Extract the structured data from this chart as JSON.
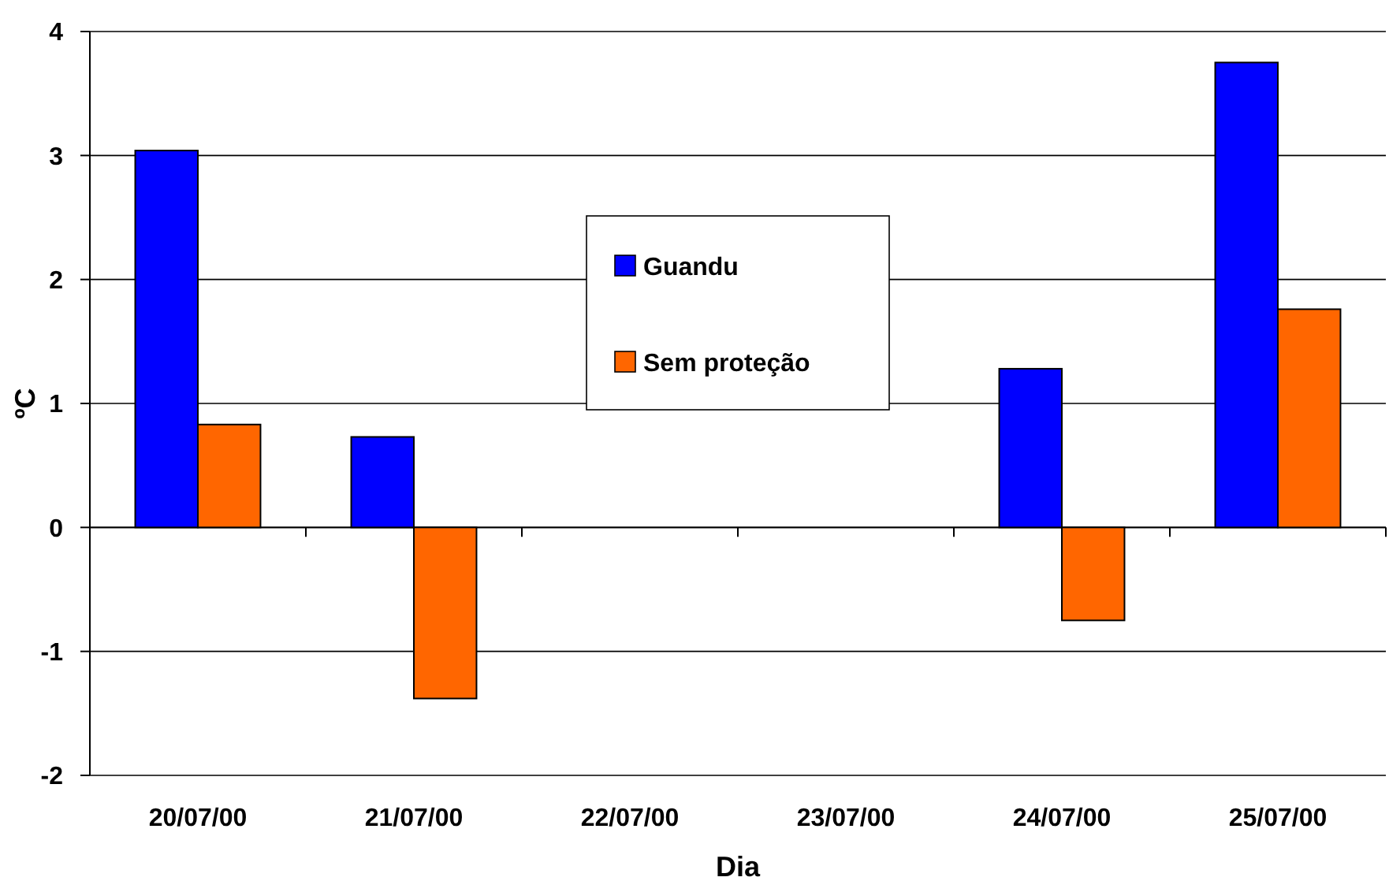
{
  "chart_data": {
    "type": "bar",
    "xlabel": "Dia",
    "ylabel": "ºC",
    "categories": [
      "20/07/00",
      "21/07/00",
      "22/07/00",
      "23/07/00",
      "24/07/00",
      "25/07/00"
    ],
    "series": [
      {
        "name": "Guandu",
        "color": "#0000ff",
        "values": [
          3.04,
          0.73,
          null,
          null,
          1.28,
          3.75
        ]
      },
      {
        "name": "Sem proteção",
        "color": "#ff6600",
        "values": [
          0.83,
          -1.38,
          null,
          null,
          -0.75,
          1.76
        ]
      }
    ],
    "ylim": [
      -2,
      4
    ],
    "yticks": [
      -2,
      -1,
      0,
      1,
      2,
      3,
      4
    ],
    "grid": "y",
    "legend": "top"
  }
}
